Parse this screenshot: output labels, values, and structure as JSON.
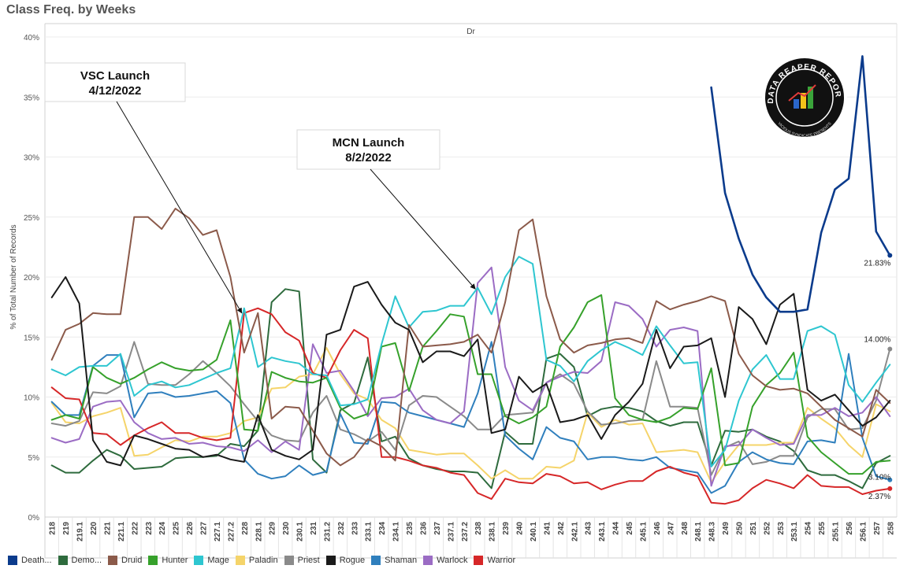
{
  "title": "Class Freq. by Weeks",
  "chart_data": {
    "type": "line",
    "panel_header": "Dr",
    "ylabel": "% of Total Number of Records",
    "ylim": [
      0,
      40
    ],
    "yticks": [
      "0%",
      "5%",
      "10%",
      "15%",
      "20%",
      "25%",
      "30%",
      "35%",
      "40%"
    ],
    "grid": true,
    "legend_position": "bottom",
    "categories": [
      "218",
      "219",
      "219.1",
      "220",
      "221",
      "221.1",
      "222",
      "223",
      "224",
      "225",
      "226",
      "227",
      "227.1",
      "227.2",
      "228",
      "228.1",
      "229",
      "230",
      "230.1",
      "231",
      "231.2",
      "232",
      "233",
      "233.1",
      "234",
      "234.1",
      "235",
      "236",
      "237",
      "237.1",
      "237.2",
      "238",
      "238.1",
      "239",
      "240",
      "240.1",
      "241",
      "242",
      "242.1",
      "243",
      "243.1",
      "244",
      "245",
      "245.1",
      "246",
      "247",
      "248",
      "248.1",
      "248.3",
      "249",
      "250",
      "251",
      "252",
      "253",
      "253.1",
      "254",
      "255",
      "255.1",
      "256",
      "256.1",
      "257",
      "258"
    ],
    "series": [
      {
        "name": "Death...",
        "color": "#0b3b8c",
        "width": 2.6,
        "values": [
          null,
          null,
          null,
          null,
          null,
          null,
          null,
          null,
          null,
          null,
          null,
          null,
          null,
          null,
          null,
          null,
          null,
          null,
          null,
          null,
          null,
          null,
          null,
          null,
          null,
          null,
          null,
          null,
          null,
          null,
          null,
          null,
          null,
          null,
          null,
          null,
          null,
          null,
          null,
          null,
          null,
          null,
          null,
          null,
          null,
          null,
          null,
          null,
          35.8,
          27.0,
          23.2,
          20.2,
          18.3,
          17.1,
          17.1,
          17.3,
          23.7,
          27.3,
          28.2,
          38.4,
          23.8,
          21.8
        ]
      },
      {
        "name": "Demo...",
        "color": "#2e6b3d",
        "width": 2.0,
        "values": [
          4.3,
          3.7,
          3.7,
          4.7,
          5.6,
          5.1,
          4.0,
          4.1,
          4.2,
          4.9,
          5.0,
          5.0,
          5.1,
          6.1,
          5.9,
          7.2,
          17.9,
          19.0,
          18.8,
          4.8,
          3.7,
          8.9,
          9.5,
          13.3,
          6.3,
          6.7,
          4.9,
          4.3,
          4.0,
          3.8,
          3.8,
          3.7,
          2.4,
          7.1,
          6.1,
          6.1,
          13.2,
          13.6,
          12.5,
          8.4,
          9.0,
          9.2,
          9.1,
          8.8,
          8.0,
          7.6,
          7.9,
          7.9,
          4.3,
          7.2,
          7.1,
          7.3,
          6.7,
          6.3,
          5.5,
          3.9,
          3.5,
          3.5,
          3.0,
          2.4,
          4.5,
          5.1
        ]
      },
      {
        "name": "Druid",
        "color": "#8b5a4a",
        "width": 2.0,
        "values": [
          13.1,
          15.6,
          16.1,
          17.0,
          16.9,
          16.9,
          25.0,
          25.0,
          24.0,
          25.7,
          24.9,
          23.5,
          23.9,
          20.0,
          13.7,
          17.0,
          8.2,
          9.2,
          9.1,
          7.2,
          5.3,
          4.3,
          5.0,
          6.5,
          5.9,
          4.7,
          16.0,
          14.2,
          14.3,
          14.4,
          14.6,
          15.2,
          13.7,
          17.9,
          23.9,
          24.8,
          18.4,
          14.8,
          13.7,
          14.3,
          14.5,
          14.8,
          14.9,
          14.5,
          18.0,
          17.3,
          17.7,
          18.0,
          18.4,
          18.0,
          13.6,
          11.8,
          10.9,
          10.6,
          10.7,
          10.3,
          9.2,
          8.1,
          7.4,
          6.7,
          10.6,
          9.5
        ]
      },
      {
        "name": "Hunter",
        "color": "#36a12b",
        "width": 2.0,
        "values": [
          8.1,
          8.5,
          8.2,
          12.5,
          11.6,
          11.1,
          11.6,
          12.3,
          12.9,
          12.4,
          12.2,
          12.3,
          13.1,
          16.4,
          7.3,
          7.2,
          12.1,
          11.6,
          11.3,
          11.2,
          11.6,
          9.1,
          8.2,
          8.6,
          14.2,
          14.5,
          10.5,
          14.2,
          15.5,
          16.9,
          16.7,
          11.9,
          11.9,
          8.4,
          7.8,
          8.3,
          9.2,
          14.2,
          15.8,
          17.9,
          18.5,
          9.9,
          8.5,
          8.1,
          7.9,
          8.3,
          9.1,
          9.0,
          12.4,
          4.3,
          4.5,
          9.2,
          11.0,
          12.0,
          13.7,
          6.7,
          5.4,
          4.5,
          3.6,
          3.6,
          4.6,
          4.7
        ]
      },
      {
        "name": "Mage",
        "color": "#2ec6d0",
        "width": 2.0,
        "values": [
          12.3,
          11.8,
          12.5,
          12.6,
          12.6,
          13.6,
          10.1,
          11.0,
          11.3,
          10.8,
          11.0,
          11.5,
          12.0,
          12.4,
          17.4,
          12.5,
          13.3,
          13.0,
          12.8,
          11.9,
          11.8,
          9.3,
          9.4,
          9.8,
          14.4,
          18.4,
          15.8,
          17.1,
          17.2,
          17.6,
          17.6,
          19.1,
          16.9,
          20.0,
          21.7,
          21.1,
          13.1,
          12.6,
          11.3,
          13.0,
          13.9,
          14.6,
          14.1,
          13.5,
          15.9,
          14.3,
          12.8,
          12.9,
          4.2,
          5.6,
          9.7,
          12.3,
          13.5,
          11.5,
          11.5,
          15.5,
          15.9,
          15.2,
          11.0,
          9.6,
          11.2,
          12.7
        ]
      },
      {
        "name": "Paladin",
        "color": "#f5d46a",
        "width": 2.0,
        "values": [
          9.5,
          7.9,
          7.8,
          8.4,
          8.7,
          9.1,
          5.1,
          5.2,
          5.8,
          6.4,
          6.3,
          6.7,
          6.7,
          7.0,
          8.0,
          8.3,
          10.7,
          10.8,
          11.7,
          11.9,
          14.1,
          11.9,
          10.3,
          9.8,
          8.1,
          7.4,
          5.6,
          5.4,
          5.2,
          5.3,
          5.3,
          4.3,
          3.2,
          3.9,
          3.2,
          3.2,
          4.2,
          4.1,
          4.7,
          8.7,
          7.5,
          8.1,
          7.7,
          7.8,
          5.4,
          5.5,
          5.6,
          5.4,
          2.9,
          4.6,
          6.0,
          6.0,
          6.0,
          6.2,
          6.2,
          9.1,
          8.2,
          7.4,
          6.0,
          5.0,
          9.4,
          8.8
        ]
      },
      {
        "name": "Priest",
        "color": "#8a8a8a",
        "width": 2.0,
        "values": [
          7.8,
          7.6,
          8.0,
          10.4,
          10.3,
          10.9,
          14.6,
          11.1,
          11.0,
          11.0,
          11.9,
          13.0,
          12.0,
          10.9,
          9.4,
          8.0,
          6.8,
          6.4,
          6.3,
          8.7,
          10.1,
          7.3,
          6.9,
          6.3,
          7.1,
          5.6,
          9.3,
          10.1,
          10.0,
          9.2,
          8.4,
          7.3,
          7.3,
          8.5,
          8.6,
          8.7,
          11.2,
          11.9,
          11.1,
          8.8,
          7.7,
          7.8,
          8.0,
          8.1,
          13.0,
          9.2,
          9.2,
          9.1,
          3.5,
          5.8,
          6.3,
          4.4,
          4.6,
          5.1,
          5.1,
          8.3,
          9.0,
          9.0,
          7.3,
          7.4,
          9.7,
          14.0
        ]
      },
      {
        "name": "Rogue",
        "color": "#1a1a1a",
        "width": 2.0,
        "values": [
          18.3,
          20.0,
          17.8,
          6.4,
          4.6,
          4.3,
          6.8,
          6.5,
          6.1,
          5.7,
          5.6,
          5.0,
          5.2,
          4.8,
          4.6,
          8.5,
          5.6,
          5.1,
          4.8,
          5.6,
          15.2,
          15.6,
          19.2,
          19.6,
          17.7,
          16.2,
          15.6,
          12.9,
          13.8,
          13.8,
          13.4,
          14.8,
          7.0,
          7.3,
          11.7,
          10.4,
          11.1,
          7.9,
          8.1,
          8.5,
          6.5,
          8.5,
          9.6,
          11.1,
          15.6,
          12.4,
          14.2,
          14.3,
          14.9,
          10.0,
          17.5,
          16.5,
          14.4,
          17.7,
          18.6,
          10.6,
          9.7,
          10.2,
          8.9,
          7.6,
          8.3,
          9.7
        ]
      },
      {
        "name": "Shaman",
        "color": "#2f7fbd",
        "width": 2.0,
        "values": [
          9.6,
          8.5,
          8.5,
          12.6,
          13.5,
          13.5,
          8.3,
          10.3,
          10.4,
          10.0,
          10.1,
          10.3,
          10.5,
          9.5,
          4.8,
          3.6,
          3.2,
          3.4,
          4.3,
          3.5,
          3.8,
          8.6,
          6.2,
          6.1,
          9.6,
          9.5,
          8.7,
          8.4,
          8.1,
          7.8,
          7.5,
          10.3,
          14.6,
          6.8,
          5.7,
          4.8,
          7.5,
          6.6,
          6.3,
          4.8,
          5.0,
          5.0,
          4.8,
          4.7,
          5.0,
          4.1,
          3.9,
          3.7,
          2.0,
          2.6,
          4.6,
          5.4,
          4.8,
          4.5,
          4.4,
          6.3,
          6.4,
          6.2,
          13.6,
          6.6,
          3.4,
          3.1
        ]
      },
      {
        "name": "Warlock",
        "color": "#9b6cc4",
        "width": 2.0,
        "values": [
          6.6,
          6.2,
          6.5,
          9.2,
          9.6,
          9.7,
          7.9,
          7.0,
          6.5,
          6.6,
          6.1,
          6.2,
          5.9,
          5.8,
          5.5,
          6.4,
          5.4,
          6.3,
          5.6,
          14.4,
          12.0,
          12.2,
          10.5,
          8.4,
          9.9,
          10.0,
          10.7,
          8.9,
          8.1,
          7.8,
          8.8,
          19.5,
          20.8,
          12.5,
          9.7,
          8.9,
          11.2,
          11.7,
          12.1,
          12.0,
          13.0,
          17.9,
          17.6,
          16.5,
          14.2,
          15.6,
          15.8,
          15.5,
          2.6,
          5.9,
          6.0,
          7.3,
          6.6,
          6.0,
          6.1,
          8.5,
          8.5,
          9.1,
          8.4,
          8.7,
          10.0,
          8.4
        ]
      },
      {
        "name": "Warrior",
        "color": "#d62728",
        "width": 2.0,
        "values": [
          10.8,
          9.9,
          9.8,
          7.0,
          6.9,
          6.0,
          6.8,
          7.4,
          7.9,
          7.0,
          7.0,
          6.6,
          6.4,
          6.6,
          17.0,
          17.4,
          16.9,
          15.4,
          14.7,
          12.0,
          11.6,
          13.9,
          15.6,
          14.9,
          5.0,
          5.0,
          4.7,
          4.3,
          4.1,
          3.7,
          3.5,
          2.0,
          1.5,
          3.2,
          2.9,
          2.8,
          3.6,
          3.4,
          2.8,
          2.9,
          2.3,
          2.7,
          3.0,
          3.0,
          3.8,
          4.2,
          3.7,
          3.4,
          1.2,
          1.1,
          1.4,
          2.4,
          3.1,
          2.8,
          2.4,
          3.5,
          2.6,
          2.5,
          2.5,
          1.9,
          2.2,
          2.37
        ]
      }
    ],
    "end_labels": [
      {
        "series": "Death...",
        "text": "21.83%"
      },
      {
        "series": "Priest",
        "text": "14.00%"
      },
      {
        "series": "Shaman",
        "text": "3.10%"
      },
      {
        "series": "Warrior",
        "text": "2.37%"
      }
    ],
    "annotations": [
      {
        "line1": "VSC Launch",
        "line2": "4/12/2022",
        "target_category": "228",
        "target_value": 17.0
      },
      {
        "line1": "MCN Launch",
        "line2": "8/2/2022",
        "target_category": "238",
        "target_value": 19.0
      }
    ]
  },
  "logo": {
    "text": "DATA REAPER REPORT",
    "subtext": "VICIOUS SYNDICATE PRESENTS"
  }
}
